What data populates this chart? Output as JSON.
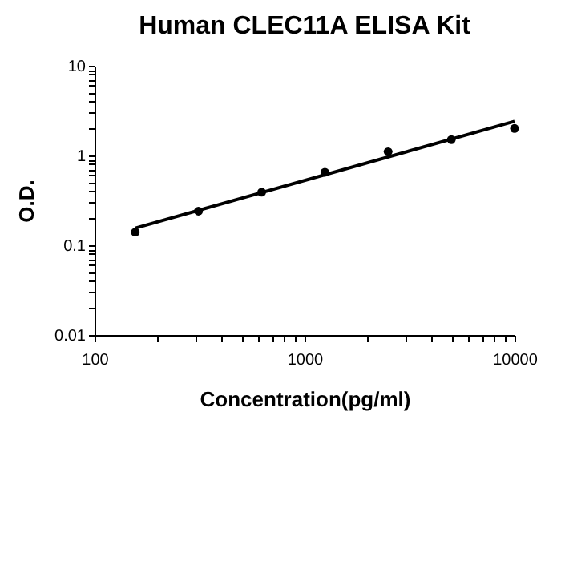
{
  "chart_data": {
    "type": "scatter",
    "title": "Human CLEC11A ELISA Kit",
    "xlabel": "Concentration(pg/ml)",
    "ylabel": "O.D.",
    "log": "xy",
    "marker": "circle",
    "xlim": [
      100,
      10000
    ],
    "ylim": [
      0.01,
      10
    ],
    "xticks": [
      100,
      {
        "value": 200,
        "label": null
      },
      {
        "value": 300,
        "label": null
      },
      {
        "value": 400,
        "label": null
      },
      {
        "value": 500,
        "label": null
      },
      {
        "value": 600,
        "label": null
      },
      {
        "value": 700,
        "label": null
      },
      {
        "value": 800,
        "label": null
      },
      {
        "value": 900,
        "label": null
      },
      1000,
      {
        "value": 2000,
        "label": null
      },
      {
        "value": 3000,
        "label": null
      },
      {
        "value": 4000,
        "label": null
      },
      {
        "value": 5000,
        "label": null
      },
      {
        "value": 6000,
        "label": null
      },
      {
        "value": 7000,
        "label": null
      },
      {
        "value": 8000,
        "label": null
      },
      {
        "value": 9000,
        "label": null
      },
      10000
    ],
    "yticks": [
      0.01,
      {
        "value": 0.02,
        "label": null
      },
      {
        "value": 0.03,
        "label": null
      },
      {
        "value": 0.04,
        "label": null
      },
      {
        "value": 0.05,
        "label": null
      },
      {
        "value": 0.06,
        "label": null
      },
      {
        "value": 0.07,
        "label": null
      },
      {
        "value": 0.08,
        "label": null
      },
      {
        "value": 0.09,
        "label": null
      },
      0.1,
      {
        "value": 0.2,
        "label": null
      },
      {
        "value": 0.3,
        "label": null
      },
      {
        "value": 0.4,
        "label": null
      },
      {
        "value": 0.5,
        "label": null
      },
      {
        "value": 0.6,
        "label": null
      },
      {
        "value": 0.7,
        "label": null
      },
      {
        "value": 0.8,
        "label": null
      },
      {
        "value": 0.9,
        "label": null
      },
      1,
      {
        "value": 2,
        "label": null
      },
      {
        "value": 3,
        "label": null
      },
      {
        "value": 4,
        "label": null
      },
      {
        "value": 5,
        "label": null
      },
      {
        "value": 6,
        "label": null
      },
      {
        "value": 7,
        "label": null
      },
      {
        "value": 8,
        "label": null
      },
      {
        "value": 9,
        "label": null
      },
      10
    ],
    "series": [
      {
        "type": "scatter",
        "color": "#000000",
        "x": [
          156.25,
          312.5,
          625,
          1250,
          2500,
          5000,
          10000
        ],
        "values": [
          0.14,
          0.24,
          0.39,
          0.65,
          1.1,
          1.5,
          2.0
        ]
      },
      {
        "type": "line",
        "color": "#000000",
        "line_style": "solid",
        "marker": "none",
        "x": [
          156.25,
          10000
        ],
        "values": [
          0.155,
          2.4
        ]
      }
    ]
  }
}
